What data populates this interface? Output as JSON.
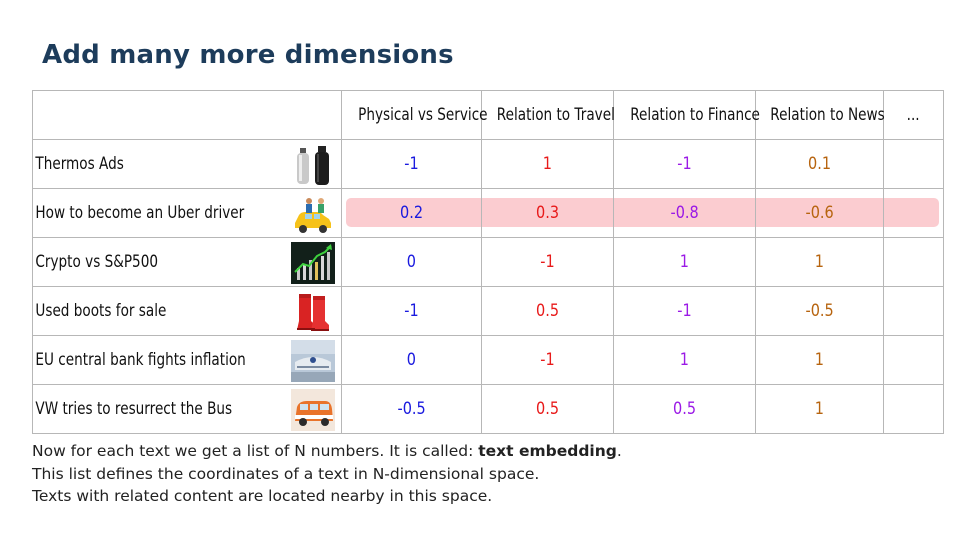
{
  "slide": {
    "title": "Add many more dimensions",
    "table": {
      "headers": [
        "",
        "Physical vs Service",
        "Relation to Travel",
        "Relation to Finance",
        "Relation to News",
        "..."
      ],
      "rows": [
        {
          "label": "Thermos Ads",
          "image": "thermos-bottles-icon",
          "values": [
            "-1",
            "1",
            "-1",
            "0.1",
            ""
          ]
        },
        {
          "label": "How to become an Uber driver",
          "image": "taxi-driver-icon",
          "values": [
            "0.2",
            "0.3",
            "-0.8",
            "-0.6",
            ""
          ],
          "highlighted": true
        },
        {
          "label": "Crypto vs S&P500",
          "image": "crypto-chart-icon",
          "values": [
            "0",
            "-1",
            "1",
            "1",
            ""
          ]
        },
        {
          "label": "Used boots for sale",
          "image": "red-boots-icon",
          "values": [
            "-1",
            "0.5",
            "-1",
            "-0.5",
            ""
          ]
        },
        {
          "label": "EU central bank fights inflation",
          "image": "bank-building-icon",
          "values": [
            "0",
            "-1",
            "1",
            "1",
            ""
          ]
        },
        {
          "label": "VW tries to resurrect the Bus",
          "image": "vw-bus-icon",
          "values": [
            "-0.5",
            "0.5",
            "0.5",
            "1",
            ""
          ]
        }
      ],
      "column_colors": [
        "#1a1adf",
        "#e81a1a",
        "#9b1ae6",
        "#b7640f"
      ],
      "highlight_color": "#fbccd0"
    },
    "footer": {
      "line1_prefix": "Now for each text we get a list of N numbers. It is called: ",
      "line1_bold": "text embedding",
      "line1_suffix": ".",
      "line2": "This list defines the coordinates of a text in N-dimensional space.",
      "line3": "Texts with related content are located nearby in this space."
    }
  }
}
